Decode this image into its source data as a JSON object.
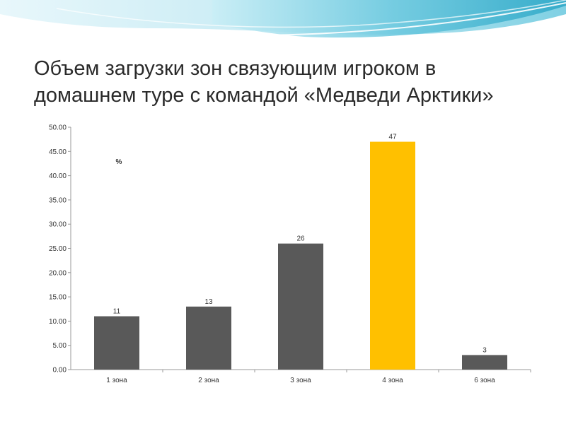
{
  "slide": {
    "title": "Объем загрузки зон связующим игроком в домашнем туре с командой «Медведи Арктики»"
  },
  "colors": {
    "bar_default": "#595959",
    "bar_highlight": "#FFC000",
    "wave_light": "#d6f1f7",
    "wave_mid": "#8fd6e6",
    "wave_dark": "#3fb3cf"
  },
  "chart_data": {
    "type": "bar",
    "title": "",
    "xlabel": "",
    "ylabel": "%",
    "ylim": [
      0,
      50
    ],
    "y_ticks": [
      "0.00",
      "5.00",
      "10.00",
      "15.00",
      "20.00",
      "25.00",
      "30.00",
      "35.00",
      "40.00",
      "45.00",
      "50.00"
    ],
    "categories": [
      "1 зона",
      "2 зона",
      "3 зона",
      "4 зона",
      "6 зона"
    ],
    "values": [
      11,
      13,
      26,
      47,
      3
    ],
    "data_labels": [
      "11",
      "13",
      "26",
      "47",
      "3"
    ],
    "highlight_index": 3,
    "grid": false,
    "legend": "none"
  }
}
